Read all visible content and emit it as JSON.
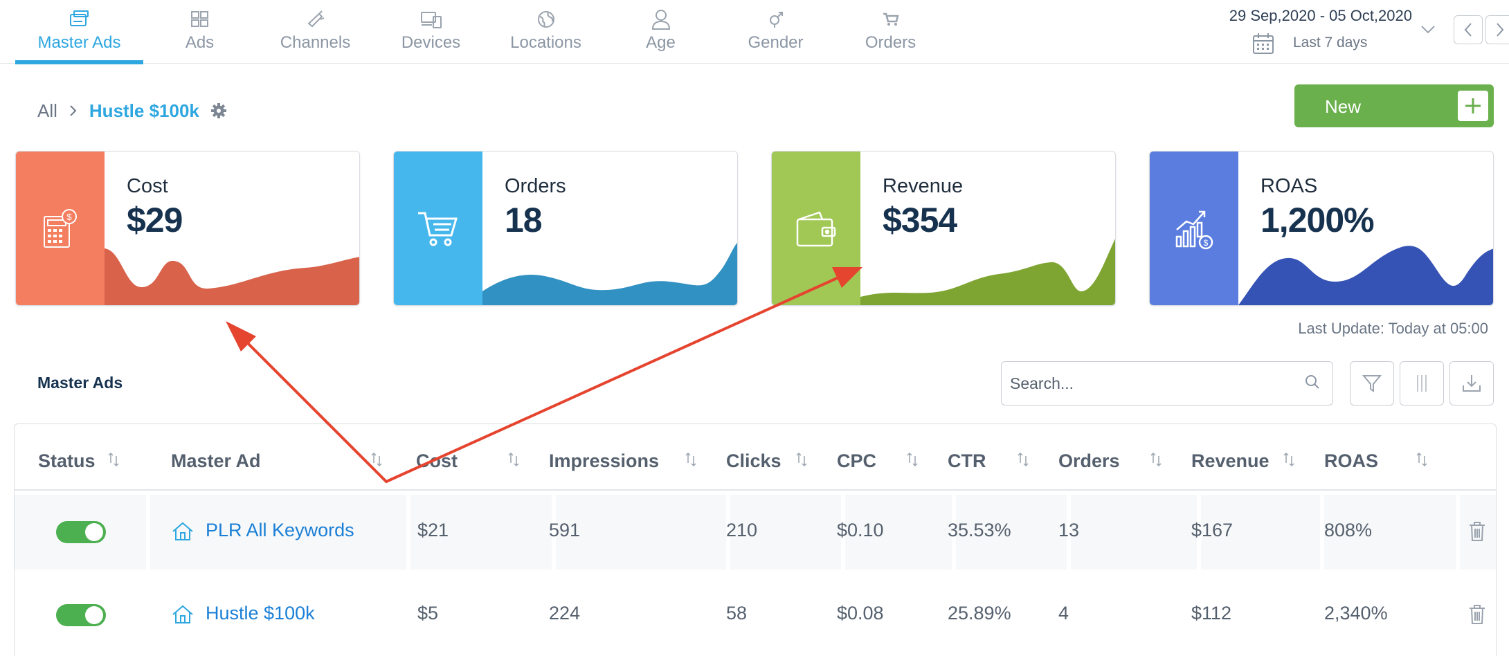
{
  "nav": {
    "tabs": [
      {
        "label": "Master Ads",
        "icon": "master-ads-icon",
        "active": true
      },
      {
        "label": "Ads",
        "icon": "ads-icon",
        "active": false
      },
      {
        "label": "Channels",
        "icon": "channels-icon",
        "active": false
      },
      {
        "label": "Devices",
        "icon": "devices-icon",
        "active": false
      },
      {
        "label": "Locations",
        "icon": "globe-icon",
        "active": false
      },
      {
        "label": "Age",
        "icon": "person-icon",
        "active": false
      },
      {
        "label": "Gender",
        "icon": "gender-icon",
        "active": false
      },
      {
        "label": "Orders",
        "icon": "cart-icon",
        "active": false
      }
    ],
    "date_range": "29 Sep,2020 - 05 Oct,2020",
    "date_preset": "Last 7 days"
  },
  "breadcrumb": {
    "root": "All",
    "current": "Hustle $100k"
  },
  "new_button": {
    "label": "New"
  },
  "cards": [
    {
      "name": "Cost",
      "value": "$29",
      "side_color": "#f47e60",
      "wave_color": "#d9624a",
      "icon": "calculator-dollar-icon"
    },
    {
      "name": "Orders",
      "value": "18",
      "side_color": "#45b7ec",
      "wave_color": "#3191c3",
      "icon": "cart-icon"
    },
    {
      "name": "Revenue",
      "value": "$354",
      "side_color": "#a1c754",
      "wave_color": "#7ea431",
      "icon": "wallet-icon"
    },
    {
      "name": "ROAS",
      "value": "1,200%",
      "side_color": "#5a7ddf",
      "wave_color": "#3553b4",
      "icon": "growth-chart-icon"
    }
  ],
  "last_update": "Last Update: Today at 05:00",
  "section_title": "Master Ads",
  "search": {
    "placeholder": "Search..."
  },
  "table": {
    "columns": [
      "Status",
      "Master Ad",
      "Cost",
      "Impressions",
      "Clicks",
      "CPC",
      "CTR",
      "Orders",
      "Revenue",
      "ROAS"
    ],
    "rows": [
      {
        "active": true,
        "name": "PLR All Keywords",
        "cost": "$21",
        "impressions": "591",
        "clicks": "210",
        "cpc": "$0.10",
        "ctr": "35.53%",
        "orders": "13",
        "revenue": "$167",
        "roas": "808%"
      },
      {
        "active": true,
        "name": "Hustle $100k",
        "cost": "$5",
        "impressions": "224",
        "clicks": "58",
        "cpc": "$0.08",
        "ctr": "25.89%",
        "orders": "4",
        "revenue": "$112",
        "roas": "2,340%"
      }
    ]
  },
  "colors": {
    "accent": "#2ea7e0",
    "new_button": "#6ab04c",
    "toggle_on": "#4caf50",
    "annotation": "#e5442f"
  }
}
